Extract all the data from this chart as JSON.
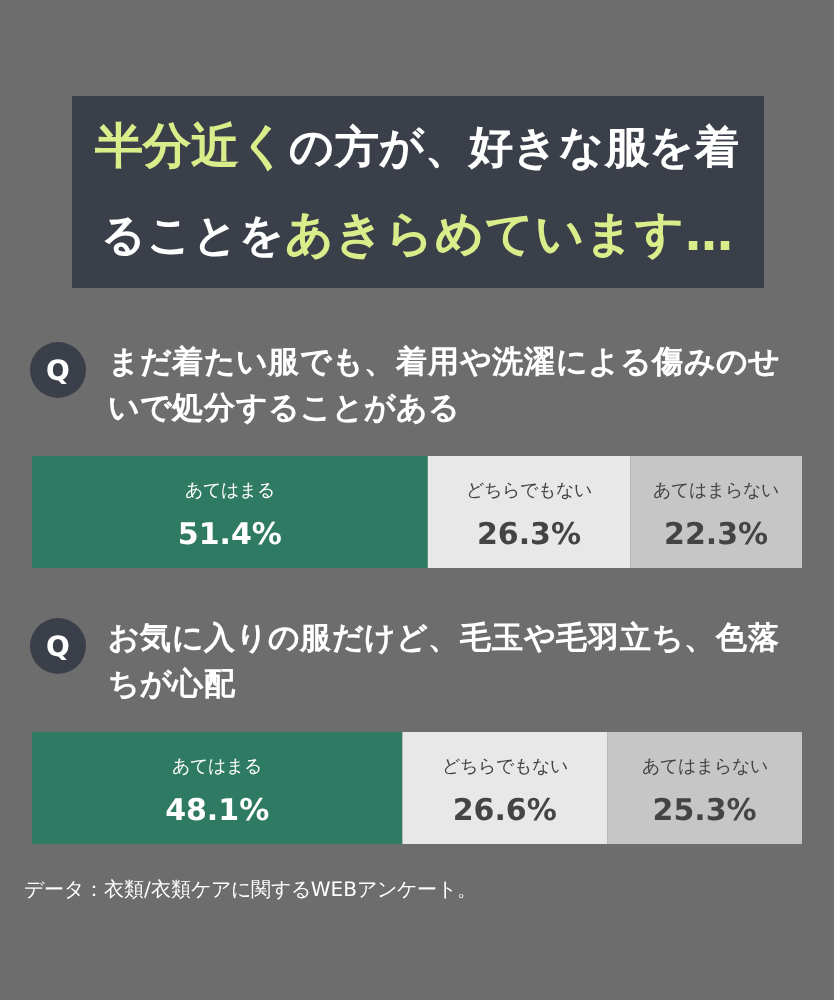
{
  "chart_data": [
    {
      "type": "other",
      "title": "**半分近く**の方が、好きな服を着ることを**あきらめています…**"
    },
    {
      "type": "bar",
      "orientation": "horizontal",
      "stacked": true,
      "title": "まだ着たい服でも、着用や洗濯による傷みのせいで処分することがある",
      "categories": [
        null
      ],
      "xlim": [
        0,
        100
      ],
      "annotations": [
        "Q"
      ],
      "series": [
        {
          "name": "あてはまる",
          "color": "#2f7a63",
          "values": [
            51.4
          ],
          "value_labels": [
            "51.4%"
          ]
        },
        {
          "name": "どちらでもない",
          "color": "#e8e8e8",
          "values": [
            26.3
          ],
          "value_labels": [
            "26.3%"
          ]
        },
        {
          "name": "あてはまらない",
          "color": "#c6c6c6",
          "values": [
            22.3
          ],
          "value_labels": [
            "22.3%"
          ]
        }
      ]
    },
    {
      "type": "bar",
      "orientation": "horizontal",
      "stacked": true,
      "title": "お気に入りの服だけど、毛玉や毛羽立ち、色落ちが心配",
      "categories": [
        null
      ],
      "xlim": [
        0,
        100
      ],
      "annotations": [
        "Q",
        "データ：衣類/衣類ケアに関するWEBアンケート。"
      ],
      "series": [
        {
          "name": "あてはまる",
          "color": "#2f7a63",
          "values": [
            48.1
          ],
          "value_labels": [
            "48.1%"
          ]
        },
        {
          "name": "どちらでもない",
          "color": "#e8e8e8",
          "values": [
            26.6
          ],
          "value_labels": [
            "26.6%"
          ]
        },
        {
          "name": "あてはまらない",
          "color": "#c6c6c6",
          "values": [
            25.3
          ],
          "value_labels": [
            "25.3%"
          ]
        }
      ]
    }
  ]
}
